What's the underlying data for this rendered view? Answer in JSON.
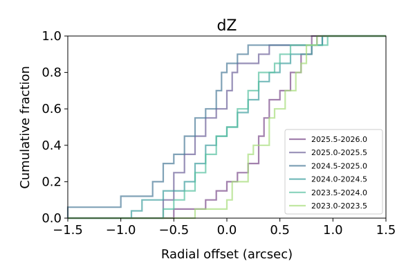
{
  "chart_data": {
    "type": "line",
    "title": "dZ",
    "xlabel": "Radial offset (arcsec)",
    "ylabel": "Cumulative fraction",
    "xlim": [
      -1.5,
      1.5
    ],
    "ylim": [
      0.0,
      1.0
    ],
    "xticks": [
      "−1.5",
      "−1.0",
      "−0.5",
      "0.0",
      "0.5",
      "1.0",
      "1.5"
    ],
    "yticks": [
      "0.0",
      "0.2",
      "0.4",
      "0.6",
      "0.8",
      "1.0"
    ],
    "grid": false,
    "legend_position": "lower-right",
    "series": [
      {
        "name": "2025.5-2026.0",
        "color": "#7b4a8a",
        "points": [
          [
            -1.5,
            0.0
          ],
          [
            -0.5,
            0.0
          ],
          [
            -0.5,
            0.05
          ],
          [
            -0.2,
            0.05
          ],
          [
            -0.2,
            0.1
          ],
          [
            -0.1,
            0.1
          ],
          [
            -0.1,
            0.15
          ],
          [
            0.0,
            0.15
          ],
          [
            0.0,
            0.2
          ],
          [
            0.1,
            0.2
          ],
          [
            0.1,
            0.25
          ],
          [
            0.2,
            0.25
          ],
          [
            0.2,
            0.3
          ],
          [
            0.3,
            0.3
          ],
          [
            0.3,
            0.45
          ],
          [
            0.35,
            0.45
          ],
          [
            0.35,
            0.55
          ],
          [
            0.4,
            0.55
          ],
          [
            0.4,
            0.65
          ],
          [
            0.5,
            0.65
          ],
          [
            0.5,
            0.7
          ],
          [
            0.6,
            0.7
          ],
          [
            0.6,
            0.8
          ],
          [
            0.7,
            0.8
          ],
          [
            0.7,
            0.9
          ],
          [
            0.8,
            0.9
          ],
          [
            0.8,
            1.0
          ],
          [
            1.5,
            1.0
          ]
        ]
      },
      {
        "name": "2025.0-2025.5",
        "color": "#6b5f99",
        "points": [
          [
            -1.5,
            0.0
          ],
          [
            -0.6,
            0.0
          ],
          [
            -0.6,
            0.1
          ],
          [
            -0.5,
            0.1
          ],
          [
            -0.5,
            0.25
          ],
          [
            -0.4,
            0.25
          ],
          [
            -0.4,
            0.35
          ],
          [
            -0.3,
            0.35
          ],
          [
            -0.3,
            0.45
          ],
          [
            -0.2,
            0.45
          ],
          [
            -0.2,
            0.55
          ],
          [
            -0.1,
            0.55
          ],
          [
            -0.1,
            0.6
          ],
          [
            0.0,
            0.6
          ],
          [
            0.0,
            0.7
          ],
          [
            0.05,
            0.7
          ],
          [
            0.05,
            0.8
          ],
          [
            0.1,
            0.8
          ],
          [
            0.1,
            0.85
          ],
          [
            0.3,
            0.85
          ],
          [
            0.3,
            0.9
          ],
          [
            0.4,
            0.9
          ],
          [
            0.4,
            0.95
          ],
          [
            0.85,
            0.95
          ],
          [
            0.85,
            1.0
          ],
          [
            1.5,
            1.0
          ]
        ]
      },
      {
        "name": "2024.5-2025.0",
        "color": "#4a7a99",
        "points": [
          [
            -1.5,
            0.0
          ],
          [
            -1.5,
            0.06
          ],
          [
            -1.0,
            0.06
          ],
          [
            -1.0,
            0.12
          ],
          [
            -0.7,
            0.12
          ],
          [
            -0.7,
            0.2
          ],
          [
            -0.6,
            0.2
          ],
          [
            -0.6,
            0.3
          ],
          [
            -0.5,
            0.3
          ],
          [
            -0.5,
            0.35
          ],
          [
            -0.4,
            0.35
          ],
          [
            -0.4,
            0.45
          ],
          [
            -0.3,
            0.45
          ],
          [
            -0.3,
            0.55
          ],
          [
            -0.2,
            0.55
          ],
          [
            -0.2,
            0.6
          ],
          [
            -0.1,
            0.6
          ],
          [
            -0.1,
            0.7
          ],
          [
            -0.05,
            0.7
          ],
          [
            -0.05,
            0.8
          ],
          [
            0.0,
            0.8
          ],
          [
            0.0,
            0.85
          ],
          [
            0.1,
            0.85
          ],
          [
            0.1,
            0.9
          ],
          [
            0.2,
            0.9
          ],
          [
            0.2,
            0.95
          ],
          [
            0.9,
            0.95
          ],
          [
            0.9,
            1.0
          ],
          [
            1.5,
            1.0
          ]
        ]
      },
      {
        "name": "2024.0-2024.5",
        "color": "#3d9e9e",
        "points": [
          [
            -1.5,
            0.0
          ],
          [
            -0.9,
            0.0
          ],
          [
            -0.9,
            0.04
          ],
          [
            -0.8,
            0.04
          ],
          [
            -0.8,
            0.1
          ],
          [
            -0.6,
            0.1
          ],
          [
            -0.6,
            0.15
          ],
          [
            -0.4,
            0.15
          ],
          [
            -0.4,
            0.2
          ],
          [
            -0.3,
            0.2
          ],
          [
            -0.3,
            0.3
          ],
          [
            -0.2,
            0.3
          ],
          [
            -0.2,
            0.4
          ],
          [
            -0.1,
            0.4
          ],
          [
            -0.1,
            0.45
          ],
          [
            0.0,
            0.45
          ],
          [
            0.0,
            0.5
          ],
          [
            0.1,
            0.5
          ],
          [
            0.1,
            0.58
          ],
          [
            0.2,
            0.58
          ],
          [
            0.2,
            0.65
          ],
          [
            0.3,
            0.65
          ],
          [
            0.3,
            0.75
          ],
          [
            0.4,
            0.75
          ],
          [
            0.4,
            0.8
          ],
          [
            0.5,
            0.8
          ],
          [
            0.5,
            0.85
          ],
          [
            0.6,
            0.85
          ],
          [
            0.6,
            0.9
          ],
          [
            0.8,
            0.9
          ],
          [
            0.8,
            0.95
          ],
          [
            0.9,
            0.95
          ],
          [
            0.9,
            1.0
          ],
          [
            1.5,
            1.0
          ]
        ]
      },
      {
        "name": "2023.5-2024.0",
        "color": "#55c0a0",
        "points": [
          [
            -1.5,
            0.0
          ],
          [
            -0.6,
            0.0
          ],
          [
            -0.6,
            0.05
          ],
          [
            -0.5,
            0.05
          ],
          [
            -0.5,
            0.1
          ],
          [
            -0.4,
            0.1
          ],
          [
            -0.4,
            0.15
          ],
          [
            -0.3,
            0.15
          ],
          [
            -0.3,
            0.25
          ],
          [
            -0.2,
            0.25
          ],
          [
            -0.2,
            0.35
          ],
          [
            -0.1,
            0.35
          ],
          [
            -0.1,
            0.45
          ],
          [
            0.0,
            0.45
          ],
          [
            0.0,
            0.5
          ],
          [
            0.1,
            0.5
          ],
          [
            0.1,
            0.6
          ],
          [
            0.2,
            0.6
          ],
          [
            0.2,
            0.7
          ],
          [
            0.3,
            0.7
          ],
          [
            0.3,
            0.8
          ],
          [
            0.45,
            0.8
          ],
          [
            0.45,
            0.85
          ],
          [
            0.5,
            0.85
          ],
          [
            0.5,
            0.9
          ],
          [
            0.6,
            0.9
          ],
          [
            0.6,
            0.95
          ],
          [
            0.95,
            0.95
          ],
          [
            0.95,
            1.0
          ],
          [
            1.5,
            1.0
          ]
        ]
      },
      {
        "name": "2023.0-2023.5",
        "color": "#a6dd7a",
        "points": [
          [
            -1.5,
            0.0
          ],
          [
            -0.3,
            0.0
          ],
          [
            -0.3,
            0.05
          ],
          [
            0.0,
            0.05
          ],
          [
            0.0,
            0.1
          ],
          [
            0.05,
            0.1
          ],
          [
            0.05,
            0.2
          ],
          [
            0.2,
            0.2
          ],
          [
            0.2,
            0.35
          ],
          [
            0.25,
            0.35
          ],
          [
            0.25,
            0.4
          ],
          [
            0.4,
            0.4
          ],
          [
            0.4,
            0.55
          ],
          [
            0.45,
            0.55
          ],
          [
            0.45,
            0.6
          ],
          [
            0.55,
            0.6
          ],
          [
            0.55,
            0.7
          ],
          [
            0.65,
            0.7
          ],
          [
            0.65,
            0.8
          ],
          [
            0.7,
            0.8
          ],
          [
            0.7,
            0.85
          ],
          [
            0.75,
            0.85
          ],
          [
            0.75,
            0.95
          ],
          [
            0.85,
            0.95
          ],
          [
            0.85,
            1.0
          ],
          [
            1.5,
            1.0
          ]
        ]
      }
    ]
  }
}
